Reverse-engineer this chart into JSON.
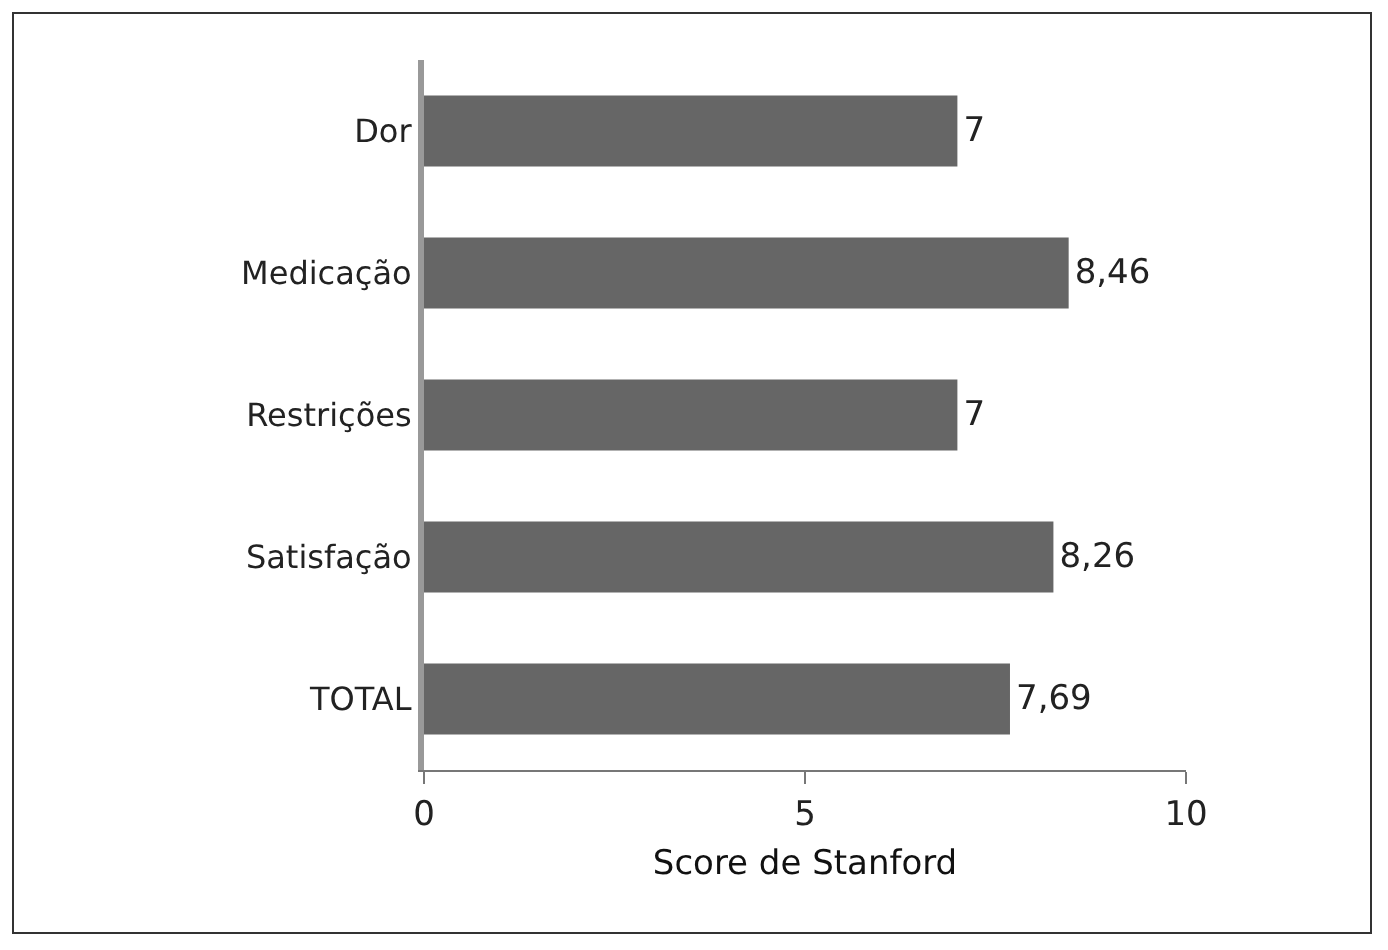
{
  "chart_data": {
    "type": "bar",
    "orientation": "horizontal",
    "xlabel": "Score de Stanford",
    "categories": [
      "Dor",
      "Medicação",
      "Restrições",
      "Satisfação",
      "TOTAL"
    ],
    "values": [
      7,
      8.46,
      7,
      8.26,
      7.69
    ],
    "value_labels": [
      "7",
      "8,46",
      "7",
      "8,26",
      "7,69"
    ],
    "color": "#666666",
    "xlim": [
      0,
      10
    ],
    "xticks": [
      0,
      5,
      10
    ],
    "grid": false,
    "legend": false
  }
}
